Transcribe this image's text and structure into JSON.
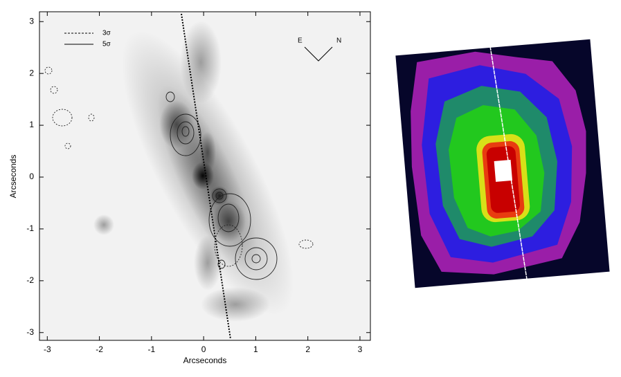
{
  "chart_data": {
    "type": "image",
    "xlabel": "Arcseconds",
    "ylabel": "Arcseconds",
    "xlim": [
      -3.15,
      3.2
    ],
    "ylim": [
      -3.15,
      3.19
    ],
    "xticks": [
      -3,
      -2,
      -1,
      0,
      1,
      2,
      3
    ],
    "yticks": [
      -3,
      -2,
      -1,
      0,
      1,
      2,
      3
    ],
    "legend": [
      "3σ",
      "5σ"
    ],
    "compass": [
      "E",
      "N"
    ]
  }
}
